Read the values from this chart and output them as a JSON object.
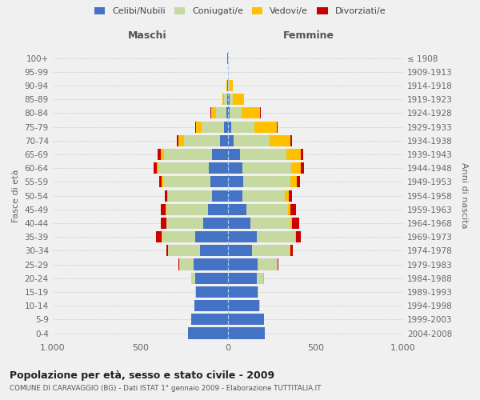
{
  "age_groups": [
    "0-4",
    "5-9",
    "10-14",
    "15-19",
    "20-24",
    "25-29",
    "30-34",
    "35-39",
    "40-44",
    "45-49",
    "50-54",
    "55-59",
    "60-64",
    "65-69",
    "70-74",
    "75-79",
    "80-84",
    "85-89",
    "90-94",
    "95-99",
    "100+"
  ],
  "birth_years": [
    "2004-2008",
    "1999-2003",
    "1994-1998",
    "1989-1993",
    "1984-1988",
    "1979-1983",
    "1974-1978",
    "1969-1973",
    "1964-1968",
    "1959-1963",
    "1954-1958",
    "1949-1953",
    "1944-1948",
    "1939-1943",
    "1934-1938",
    "1929-1933",
    "1924-1928",
    "1919-1923",
    "1914-1918",
    "1909-1913",
    "≤ 1908"
  ],
  "males_celibi": [
    225,
    210,
    190,
    180,
    185,
    195,
    160,
    185,
    140,
    115,
    90,
    100,
    110,
    90,
    45,
    20,
    8,
    5,
    2,
    1,
    2
  ],
  "males_coniugati": [
    0,
    0,
    2,
    5,
    22,
    80,
    180,
    190,
    210,
    235,
    250,
    270,
    285,
    275,
    205,
    130,
    60,
    18,
    3,
    0,
    0
  ],
  "males_vedovi": [
    0,
    0,
    0,
    0,
    0,
    1,
    1,
    2,
    2,
    3,
    5,
    6,
    12,
    18,
    32,
    32,
    28,
    10,
    2,
    0,
    0
  ],
  "males_divorziati": [
    0,
    0,
    0,
    0,
    1,
    4,
    8,
    32,
    32,
    28,
    14,
    14,
    18,
    18,
    10,
    5,
    2,
    0,
    0,
    0,
    0
  ],
  "females_nubili": [
    210,
    205,
    180,
    168,
    165,
    170,
    140,
    165,
    130,
    105,
    82,
    88,
    82,
    68,
    35,
    18,
    10,
    8,
    3,
    1,
    2
  ],
  "females_coniugate": [
    0,
    0,
    2,
    8,
    38,
    112,
    212,
    218,
    228,
    238,
    242,
    268,
    278,
    268,
    205,
    135,
    70,
    22,
    5,
    0,
    0
  ],
  "females_vedove": [
    0,
    0,
    0,
    0,
    1,
    2,
    4,
    6,
    9,
    14,
    22,
    38,
    58,
    82,
    118,
    125,
    105,
    60,
    18,
    2,
    0
  ],
  "females_divorziate": [
    0,
    0,
    0,
    0,
    2,
    4,
    14,
    28,
    38,
    32,
    22,
    18,
    18,
    14,
    10,
    5,
    2,
    1,
    0,
    0,
    0
  ],
  "colors_celibi": "#4472c4",
  "colors_coniugati": "#c5d9a0",
  "colors_vedovi": "#ffc000",
  "colors_divorziati": "#cc0000",
  "title": "Popolazione per età, sesso e stato civile - 2009",
  "subtitle": "COMUNE DI CARAVAGGIO (BG) - Dati ISTAT 1° gennaio 2009 - Elaborazione TUTTITALIA.IT",
  "ylabel_left": "Fasce di età",
  "ylabel_right": "Anni di nascita",
  "label_maschi": "Maschi",
  "label_femmine": "Femmine",
  "legend_labels": [
    "Celibi/Nubili",
    "Coniugati/e",
    "Vedovi/e",
    "Divorziati/e"
  ],
  "xlim": 1000,
  "bg_color": "#f0f0f0"
}
